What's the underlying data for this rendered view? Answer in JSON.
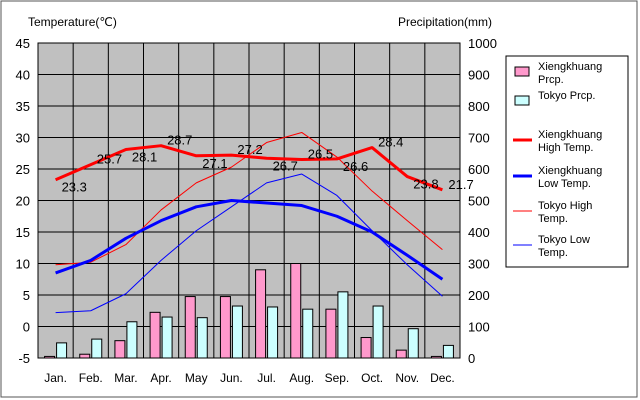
{
  "chart_data": {
    "type": "bar+line",
    "title": "",
    "left_axis_label": "Temperature(℃)",
    "right_axis_label": "Precipitation(mm)",
    "left_axis": {
      "min": -5,
      "max": 45,
      "step": 5
    },
    "right_axis": {
      "min": 0,
      "max": 1000,
      "step": 100
    },
    "categories": [
      "Jan.",
      "Feb.",
      "Mar.",
      "Apr.",
      "May",
      "Jun.",
      "Jul.",
      "Aug.",
      "Sep.",
      "Oct.",
      "Nov.",
      "Dec."
    ],
    "bar_series": [
      {
        "name": "Xiengkhuang Prcp.",
        "color": "#ff99cc",
        "values": [
          5,
          12,
          55,
          145,
          195,
          195,
          280,
          300,
          155,
          65,
          25,
          5
        ]
      },
      {
        "name": "Tokyo Prcp.",
        "color": "#ccffff",
        "values": [
          48,
          60,
          115,
          130,
          128,
          165,
          162,
          155,
          210,
          165,
          93,
          40
        ]
      }
    ],
    "line_series": [
      {
        "name": "Xiengkhuang High Temp.",
        "color": "#ff0000",
        "width": "thick",
        "values": [
          23.3,
          25.7,
          28.1,
          28.7,
          27.1,
          27.2,
          26.7,
          26.5,
          26.6,
          28.4,
          23.8,
          21.7
        ],
        "labels": [
          "23.3",
          "25.7",
          "28.1",
          "28.7",
          "27.1",
          "27.2",
          "26.7",
          "26.5",
          "26.6",
          "28.4",
          "23.8",
          "21.7"
        ]
      },
      {
        "name": "Xiengkhuang Low Temp.",
        "color": "#0000ff",
        "width": "thick",
        "values": [
          8.5,
          10.5,
          14,
          16.8,
          19,
          20,
          19.6,
          19.2,
          17.5,
          15,
          11.3,
          7.5
        ]
      },
      {
        "name": "Tokyo High Temp.",
        "color": "#ff0000",
        "width": "thin",
        "values": [
          9.8,
          10.2,
          13,
          18.5,
          22.8,
          25.3,
          29.2,
          30.8,
          26.9,
          21.5,
          16.8,
          12.2
        ]
      },
      {
        "name": "Tokyo Low Temp.",
        "color": "#0000ff",
        "width": "thin",
        "values": [
          2.2,
          2.5,
          5.2,
          10.5,
          15.2,
          19,
          22.8,
          24.2,
          20.8,
          15.2,
          9.8,
          4.8
        ]
      }
    ],
    "legend": {
      "placement": "right",
      "items": [
        {
          "label_lines": [
            "Xiengkhuang",
            "Prcp."
          ],
          "kind": "bar",
          "series": "Xiengkhuang Prcp."
        },
        {
          "label_lines": [
            "Tokyo Prcp."
          ],
          "kind": "bar",
          "series": "Tokyo Prcp."
        },
        {
          "label_lines": [
            "Xiengkhuang",
            "High Temp."
          ],
          "kind": "thick-line",
          "series": "Xiengkhuang High Temp."
        },
        {
          "label_lines": [
            "Xiengkhuang",
            "Low Temp."
          ],
          "kind": "thick-line",
          "series": "Xiengkhuang Low Temp."
        },
        {
          "label_lines": [
            "Tokyo High",
            "Temp."
          ],
          "kind": "thin-line",
          "series": "Tokyo High Temp."
        },
        {
          "label_lines": [
            "Tokyo Low",
            "Temp."
          ],
          "kind": "thin-line",
          "series": "Tokyo Low Temp."
        }
      ]
    },
    "plot_background": "#c0c0c0",
    "grid": true
  }
}
